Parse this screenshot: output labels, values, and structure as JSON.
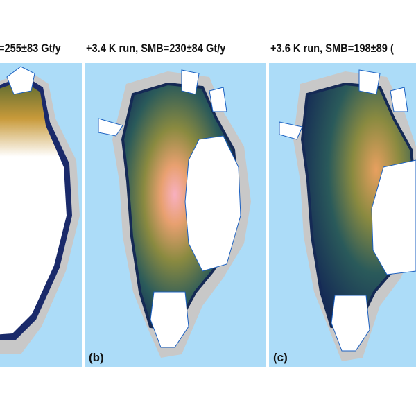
{
  "panels": [
    {
      "id": "a",
      "title": "=255±83 Gt/y",
      "label": ""
    },
    {
      "id": "b",
      "title": "+3.4 K run, SMB=230±84 Gt/y",
      "label": "(b)"
    },
    {
      "id": "c",
      "title": "+3.6 K run, SMB=198±89 (",
      "label": "(c)"
    }
  ],
  "colors": {
    "ocean": "#acdcf8",
    "ice_free_land": "#c8c8c8",
    "ice_sheet": "#ffffff",
    "ice_margin": "#1a2a6a",
    "warm_accent": "#f4a0a8",
    "cold_accent": "#1c3a5c"
  }
}
